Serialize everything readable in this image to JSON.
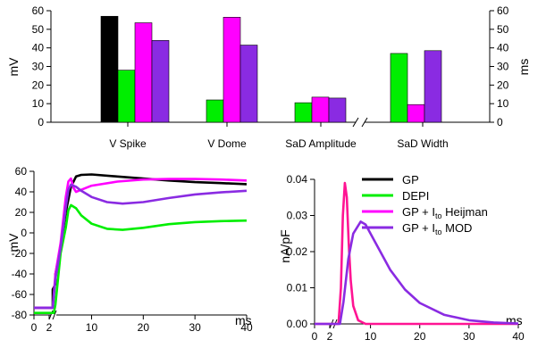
{
  "chart_data": [
    {
      "type": "bar",
      "categories": [
        "V Spike",
        "V Dome",
        "SaD Amplitude",
        "SaD Width"
      ],
      "ylabel_left": "mV",
      "ylabel_right": "ms",
      "ylim": [
        0,
        60
      ],
      "yticks": [
        0,
        10,
        20,
        30,
        40,
        50,
        60
      ],
      "axis_break_between": [
        "SaD Amplitude",
        "SaD Width"
      ],
      "series": [
        {
          "name": "GP",
          "color": "#000000",
          "values": [
            57,
            null,
            null,
            null
          ]
        },
        {
          "name": "DEPI",
          "color": "#00ee00",
          "values": [
            28,
            12,
            10.5,
            37
          ]
        },
        {
          "name": "GP + Ito Heijman",
          "color": "#ff00ff",
          "values": [
            53.5,
            56.5,
            13.5,
            9.5
          ]
        },
        {
          "name": "GP + Ito MOD",
          "color": "#8a2be2",
          "values": [
            44,
            41.5,
            13,
            38.5
          ]
        }
      ]
    },
    {
      "type": "line",
      "ylabel": "mV",
      "xlabel": "ms",
      "xticks": [
        0,
        2,
        10,
        20,
        30,
        40
      ],
      "yticks": [
        -80,
        -60,
        -40,
        -20,
        0,
        20,
        40,
        60
      ],
      "ylim": [
        -80,
        60
      ],
      "axis_break_after_x": 2,
      "series": [
        {
          "name": "GP",
          "color": "#000000",
          "points": [
            [
              0,
              -73
            ],
            [
              2.5,
              -73
            ],
            [
              2.5,
              -55
            ],
            [
              3,
              -50
            ],
            [
              3,
              -40
            ],
            [
              4,
              -15
            ],
            [
              5,
              20
            ],
            [
              6,
              45
            ],
            [
              7,
              55
            ],
            [
              8,
              56.5
            ],
            [
              10,
              57
            ],
            [
              15,
              55
            ],
            [
              20,
              53
            ],
            [
              25,
              51
            ],
            [
              30,
              49.5
            ],
            [
              35,
              48.5
            ],
            [
              40,
              47.5
            ]
          ]
        },
        {
          "name": "DEPI",
          "color": "#00ee00",
          "points": [
            [
              0,
              -78
            ],
            [
              2.7,
              -78
            ],
            [
              3,
              -70
            ],
            [
              4,
              -20
            ],
            [
              5,
              5
            ],
            [
              5.5,
              22
            ],
            [
              6,
              27
            ],
            [
              7,
              24
            ],
            [
              8,
              17
            ],
            [
              10,
              9
            ],
            [
              13,
              4
            ],
            [
              16,
              3
            ],
            [
              20,
              5
            ],
            [
              25,
              8.5
            ],
            [
              30,
              10.5
            ],
            [
              35,
              11.5
            ],
            [
              40,
              12
            ]
          ]
        },
        {
          "name": "GP + Ito Heijman",
          "color": "#ff00ff",
          "points": [
            [
              0,
              -73
            ],
            [
              2.5,
              -73
            ],
            [
              3,
              -40
            ],
            [
              4,
              -10
            ],
            [
              5,
              35
            ],
            [
              5.5,
              50
            ],
            [
              6,
              53
            ],
            [
              6.5,
              44
            ],
            [
              7,
              40
            ],
            [
              8,
              42
            ],
            [
              10,
              46
            ],
            [
              15,
              50
            ],
            [
              20,
              52
            ],
            [
              25,
              52.5
            ],
            [
              30,
              52.5
            ],
            [
              35,
              52
            ],
            [
              40,
              51
            ]
          ]
        },
        {
          "name": "GP + Ito MOD",
          "color": "#8a2be2",
          "points": [
            [
              0,
              -73
            ],
            [
              2.5,
              -73
            ],
            [
              3,
              -45
            ],
            [
              4,
              -15
            ],
            [
              5,
              25
            ],
            [
              5.5,
              42
            ],
            [
              6,
              47
            ],
            [
              7,
              45
            ],
            [
              8,
              41
            ],
            [
              10,
              35
            ],
            [
              13,
              30
            ],
            [
              16,
              28.5
            ],
            [
              20,
              30
            ],
            [
              25,
              34
            ],
            [
              30,
              37.5
            ],
            [
              35,
              39.5
            ],
            [
              40,
              41
            ]
          ]
        }
      ]
    },
    {
      "type": "line",
      "ylabel": "nA/pF",
      "xlabel": "ms",
      "xticks": [
        0,
        2,
        10,
        20,
        30,
        40
      ],
      "yticks": [
        0.0,
        0.01,
        0.02,
        0.03,
        0.04
      ],
      "ytick_labels": [
        "0.00",
        "0.01",
        "0.02",
        "0.03",
        "0.04"
      ],
      "ylim": [
        0,
        0.04
      ],
      "axis_break_after_x": 2,
      "legend": [
        "GP",
        "DEPI",
        "GP + Ito Heijman",
        "GP + Ito MOD"
      ],
      "series": [
        {
          "name": "GP + Ito Heijman",
          "color": "#ff1493",
          "points": [
            [
              0,
              0
            ],
            [
              3.5,
              0
            ],
            [
              4,
              0.01
            ],
            [
              4.4,
              0.03
            ],
            [
              4.8,
              0.039
            ],
            [
              5.2,
              0.035
            ],
            [
              5.6,
              0.022
            ],
            [
              6,
              0.012
            ],
            [
              6.5,
              0.005
            ],
            [
              7.5,
              0.001
            ],
            [
              9,
              0
            ],
            [
              40,
              0
            ]
          ]
        },
        {
          "name": "GP + Ito MOD",
          "color": "#8a2be2",
          "points": [
            [
              0,
              0
            ],
            [
              3.8,
              0
            ],
            [
              4.5,
              0.006
            ],
            [
              5.5,
              0.018
            ],
            [
              6.5,
              0.025
            ],
            [
              8,
              0.0283
            ],
            [
              9,
              0.0275
            ],
            [
              11,
              0.0225
            ],
            [
              14,
              0.015
            ],
            [
              17,
              0.0095
            ],
            [
              20,
              0.0058
            ],
            [
              25,
              0.0025
            ],
            [
              30,
              0.001
            ],
            [
              35,
              0.0004
            ],
            [
              40,
              0.0001
            ]
          ]
        }
      ]
    }
  ],
  "labels": {
    "bar_ylabel_left": "mV",
    "bar_ylabel_right": "ms",
    "ap_ylabel": "mV",
    "ap_xlabel": "ms",
    "ito_ylabel": "nA/pF",
    "ito_xlabel": "ms",
    "legend_gp": "GP",
    "legend_depi": "DEPI",
    "legend_heijman_pre": "GP + I",
    "legend_heijman_sub": "to",
    "legend_heijman_post": " Heijman",
    "legend_mod_pre": "GP + I",
    "legend_mod_sub": "to",
    "legend_mod_post": " MOD"
  }
}
